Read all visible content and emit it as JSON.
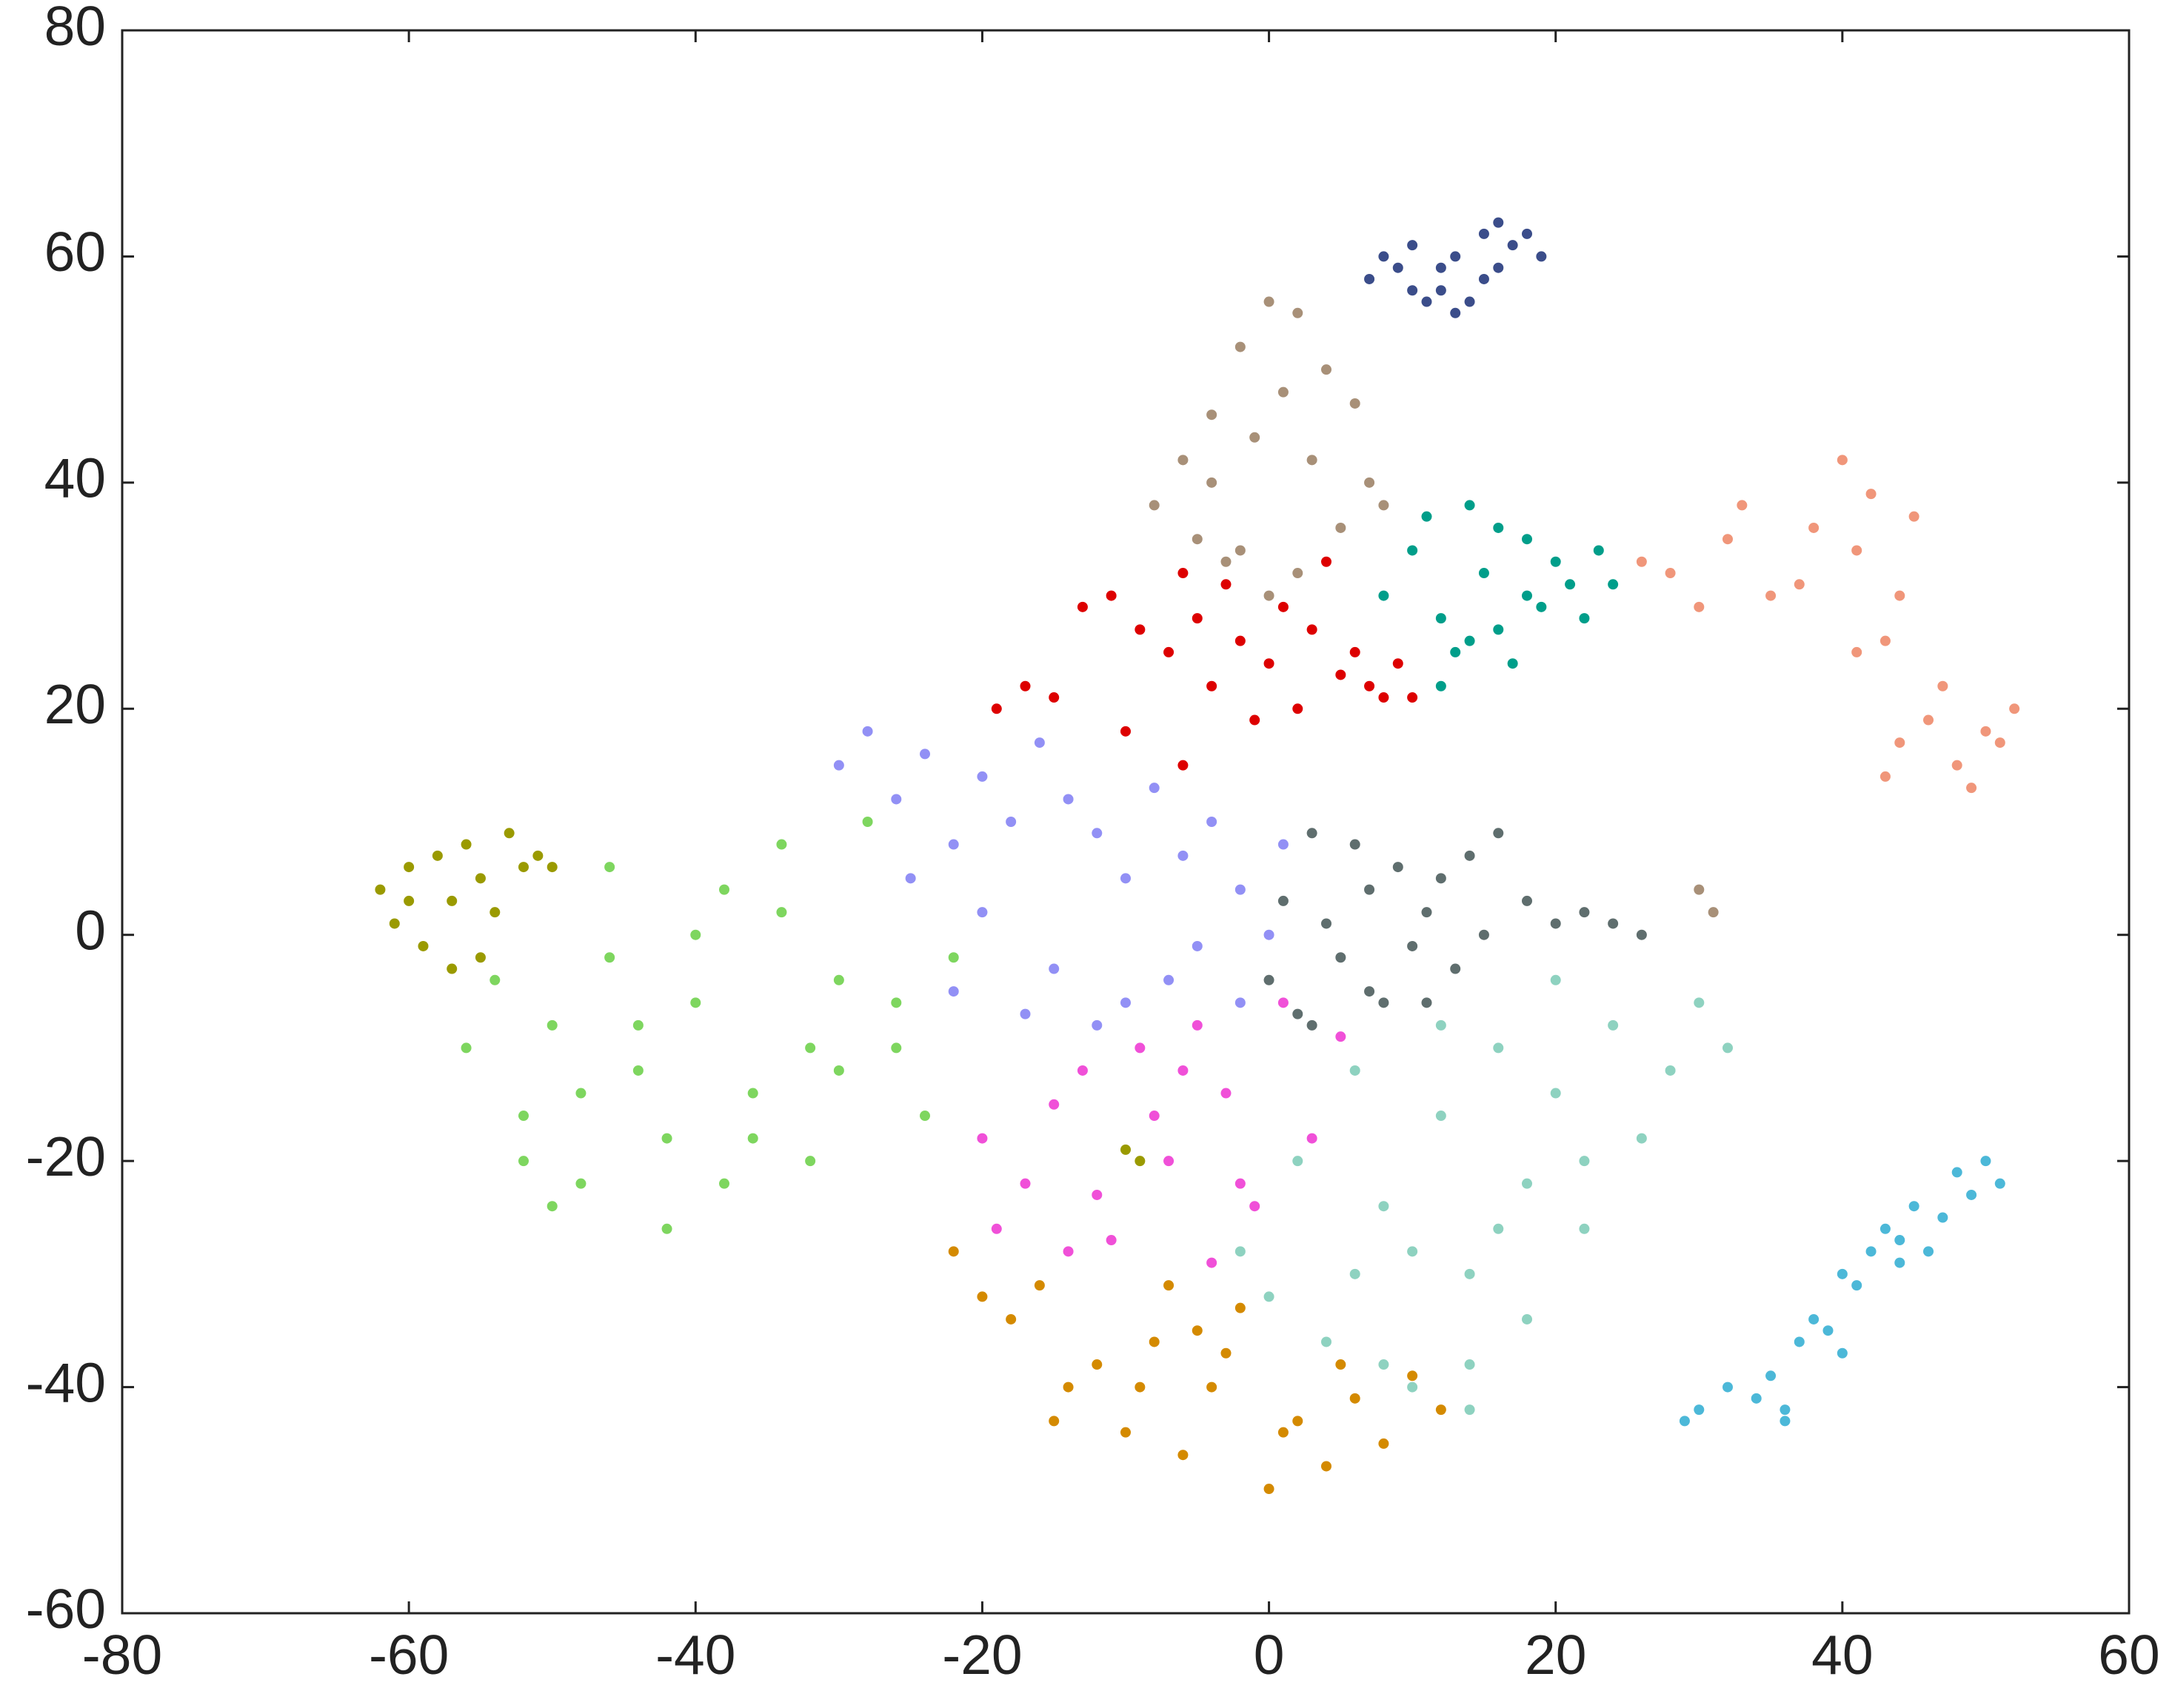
{
  "chart_data": {
    "type": "scatter",
    "xlim": [
      -80,
      60
    ],
    "xticks": [
      -80,
      -60,
      -40,
      -20,
      0,
      20,
      40,
      60
    ],
    "ylim": [
      -60,
      80
    ],
    "yticks": [
      -60,
      -40,
      -20,
      0,
      20,
      40,
      60,
      80
    ],
    "series": [
      {
        "color": "#3b4d8a",
        "x": [
          7,
          9,
          10,
          12,
          13,
          14,
          15,
          16,
          17,
          18,
          19,
          11,
          13,
          15,
          10,
          12,
          16,
          8
        ],
        "values": [
          58,
          59,
          61,
          57,
          60,
          56,
          62,
          63,
          61,
          62,
          60,
          56,
          55,
          58,
          57,
          59,
          59,
          60
        ]
      },
      {
        "color": "#a89078",
        "x": [
          -8,
          -6,
          -4,
          -2,
          0,
          2,
          4,
          6,
          7,
          -5,
          -3,
          -1,
          1,
          3,
          5,
          8,
          0,
          -2,
          2,
          -4,
          30,
          31
        ],
        "values": [
          38,
          42,
          46,
          52,
          56,
          55,
          50,
          47,
          40,
          35,
          33,
          44,
          48,
          42,
          36,
          38,
          30,
          34,
          32,
          40,
          4,
          2
        ]
      },
      {
        "color": "#009e8a",
        "x": [
          8,
          10,
          11,
          12,
          13,
          14,
          15,
          16,
          17,
          18,
          19,
          20,
          21,
          22,
          23,
          24,
          12,
          14,
          16,
          18
        ],
        "values": [
          30,
          34,
          37,
          28,
          25,
          38,
          32,
          27,
          24,
          35,
          29,
          33,
          31,
          28,
          34,
          31,
          22,
          26,
          36,
          30
        ]
      },
      {
        "color": "#f0967a",
        "x": [
          26,
          28,
          30,
          32,
          33,
          35,
          37,
          38,
          40,
          41,
          42,
          43,
          44,
          45,
          46,
          47,
          48,
          49,
          50,
          51,
          52,
          43,
          44,
          41
        ],
        "values": [
          33,
          32,
          29,
          35,
          38,
          30,
          31,
          36,
          42,
          34,
          39,
          26,
          30,
          37,
          19,
          22,
          15,
          13,
          18,
          17,
          20,
          14,
          17,
          25
        ]
      },
      {
        "color": "#dd0000",
        "x": [
          -13,
          -11,
          -9,
          -7,
          -6,
          -5,
          -4,
          -3,
          -2,
          -1,
          0,
          1,
          2,
          3,
          4,
          5,
          6,
          7,
          8,
          9,
          10,
          -19,
          -17,
          -15,
          -10,
          -6
        ],
        "values": [
          29,
          30,
          27,
          25,
          32,
          28,
          22,
          31,
          26,
          19,
          24,
          29,
          20,
          27,
          33,
          23,
          25,
          22,
          21,
          24,
          21,
          20,
          22,
          21,
          18,
          15
        ]
      },
      {
        "color": "#9290f5",
        "x": [
          -30,
          -28,
          -26,
          -24,
          -22,
          -20,
          -18,
          -16,
          -14,
          -12,
          -10,
          -8,
          -6,
          -4,
          -2,
          0,
          1,
          -25,
          -20,
          -15,
          -10,
          -5,
          -22,
          -17,
          -12,
          -7,
          -2
        ],
        "values": [
          15,
          18,
          12,
          16,
          8,
          14,
          10,
          17,
          12,
          9,
          5,
          13,
          7,
          10,
          4,
          0,
          8,
          5,
          2,
          -3,
          -6,
          -1,
          -5,
          -7,
          -8,
          -4,
          -6
        ]
      },
      {
        "color": "#7ed65f",
        "x": [
          -56,
          -54,
          -52,
          -50,
          -48,
          -46,
          -44,
          -42,
          -40,
          -38,
          -36,
          -34,
          -32,
          -30,
          -28,
          -26,
          -24,
          -22,
          -50,
          -46,
          -42,
          -38,
          -34,
          -30,
          -26,
          -44,
          -40,
          -36,
          -32,
          -48,
          -52
        ],
        "values": [
          -10,
          -4,
          -16,
          -8,
          -22,
          -2,
          -12,
          -18,
          -6,
          4,
          -14,
          8,
          -20,
          -4,
          10,
          -10,
          -16,
          -2,
          -24,
          6,
          -26,
          -22,
          2,
          -12,
          -6,
          -8,
          0,
          -18,
          -10,
          -14,
          -20
        ]
      },
      {
        "color": "#9a9a00",
        "x": [
          -62,
          -61,
          -60,
          -59,
          -58,
          -57,
          -56,
          -55,
          -54,
          -53,
          -52,
          -51,
          -50,
          -57,
          -55,
          -60,
          -10,
          -9
        ],
        "values": [
          4,
          1,
          6,
          -1,
          7,
          -3,
          8,
          5,
          2,
          9,
          6,
          7,
          6,
          3,
          -2,
          3,
          -19,
          -20
        ]
      },
      {
        "color": "#5f6e6e",
        "x": [
          0,
          1,
          2,
          3,
          4,
          5,
          6,
          7,
          8,
          9,
          10,
          11,
          12,
          13,
          14,
          15,
          16,
          18,
          20,
          22,
          24,
          26,
          3,
          7,
          11
        ],
        "values": [
          -4,
          3,
          -7,
          9,
          1,
          -2,
          8,
          4,
          -6,
          6,
          -1,
          2,
          5,
          -3,
          7,
          0,
          9,
          3,
          1,
          2,
          1,
          0,
          -8,
          -5,
          -6
        ]
      },
      {
        "color": "#f050d8",
        "x": [
          -20,
          -19,
          -17,
          -15,
          -13,
          -11,
          -9,
          -7,
          -5,
          -3,
          -1,
          1,
          3,
          5,
          -14,
          -8,
          -4,
          -12,
          -6,
          -2
        ],
        "values": [
          -18,
          -26,
          -22,
          -15,
          -12,
          -27,
          -10,
          -20,
          -8,
          -14,
          -24,
          -6,
          -18,
          -9,
          -28,
          -16,
          -29,
          -23,
          -12,
          -22
        ]
      },
      {
        "color": "#8ed2c0",
        "x": [
          -2,
          0,
          2,
          4,
          6,
          8,
          10,
          12,
          14,
          16,
          18,
          20,
          22,
          24,
          26,
          28,
          30,
          32,
          6,
          10,
          14,
          18,
          22,
          8,
          12,
          16,
          14,
          20
        ],
        "values": [
          -28,
          -32,
          -20,
          -36,
          -12,
          -24,
          -40,
          -16,
          -30,
          -10,
          -22,
          -14,
          -26,
          -8,
          -18,
          -12,
          -6,
          -10,
          -30,
          -28,
          -42,
          -34,
          -20,
          -38,
          -8,
          -26,
          -38,
          -4
        ]
      },
      {
        "color": "#d48a00",
        "x": [
          -22,
          -20,
          -18,
          -16,
          -14,
          -12,
          -10,
          -8,
          -6,
          -4,
          -2,
          0,
          2,
          4,
          6,
          8,
          10,
          12,
          -15,
          -7,
          -3,
          1,
          5,
          -9,
          -5
        ],
        "values": [
          -28,
          -32,
          -34,
          -31,
          -40,
          -38,
          -44,
          -36,
          -46,
          -40,
          -33,
          -49,
          -43,
          -47,
          -41,
          -45,
          -39,
          -42,
          -43,
          -31,
          -37,
          -44,
          -38,
          -40,
          -35
        ]
      },
      {
        "color": "#4cb8d8",
        "x": [
          29,
          30,
          32,
          34,
          35,
          36,
          37,
          38,
          39,
          40,
          41,
          42,
          43,
          44,
          45,
          46,
          47,
          48,
          49,
          50,
          51,
          36,
          40,
          44
        ],
        "values": [
          -43,
          -42,
          -40,
          -41,
          -39,
          -42,
          -36,
          -34,
          -35,
          -30,
          -31,
          -28,
          -26,
          -27,
          -24,
          -28,
          -25,
          -21,
          -23,
          -20,
          -22,
          -43,
          -37,
          -29
        ]
      }
    ]
  }
}
